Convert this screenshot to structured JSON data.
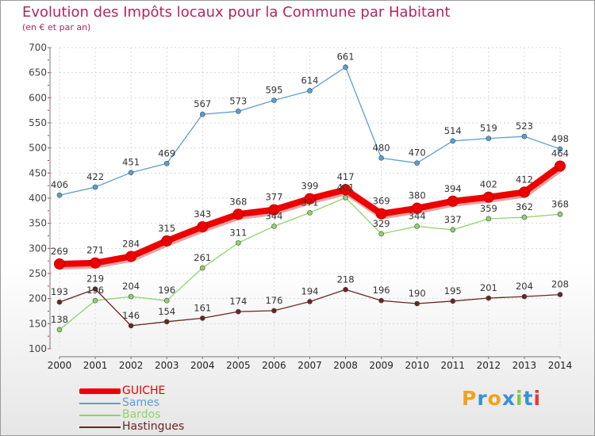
{
  "header": {
    "title": "Evolution des Impôts locaux pour la Commune par Habitant",
    "subtitle": "(en € et par an)"
  },
  "chart_data": {
    "type": "line",
    "title": "Evolution des Impôts locaux pour la Commune par Habitant",
    "subtitle": "(en € et par an)",
    "xlabel": "",
    "ylabel": "",
    "ylim": [
      100,
      700
    ],
    "yticks": [
      100,
      150,
      200,
      250,
      300,
      350,
      400,
      450,
      500,
      550,
      600,
      650,
      700
    ],
    "grid": true,
    "legend_position": "bottom-left",
    "x": [
      "2000",
      "2001",
      "2002",
      "2003",
      "2004",
      "2005",
      "2006",
      "2007",
      "2008",
      "2009",
      "2010",
      "2011",
      "2012",
      "2013",
      "2014"
    ],
    "series": [
      {
        "name": "GUICHE",
        "color": "#ee0000",
        "values": [
          269,
          271,
          284,
          315,
          343,
          368,
          377,
          399,
          417,
          369,
          380,
          394,
          402,
          412,
          464
        ]
      },
      {
        "name": "Sames",
        "color": "#5a9fd4",
        "values": [
          406,
          422,
          451,
          469,
          567,
          573,
          595,
          614,
          661,
          480,
          470,
          514,
          519,
          523,
          498
        ]
      },
      {
        "name": "Bardos",
        "color": "#8ed46a",
        "values": [
          138,
          196,
          204,
          196,
          261,
          311,
          344,
          371,
          401,
          329,
          344,
          337,
          359,
          362,
          368
        ]
      },
      {
        "name": "Hastingues",
        "color": "#6b2424",
        "values": [
          193,
          219,
          146,
          154,
          161,
          174,
          176,
          194,
          218,
          196,
          190,
          195,
          201,
          204,
          208
        ]
      }
    ]
  },
  "legend": {
    "items": [
      {
        "label": "GUICHE",
        "color": "#ee0000"
      },
      {
        "label": "Sames",
        "color": "#5a9fd4"
      },
      {
        "label": "Bardos",
        "color": "#8ed46a"
      },
      {
        "label": "Hastingues",
        "color": "#6b2424"
      }
    ]
  },
  "logo": {
    "letters": [
      "P",
      "r",
      "o",
      "x",
      "i",
      "t",
      "i"
    ],
    "colors": [
      "#f2a21a",
      "#3a8fd8",
      "#f2a21a",
      "#3a8fd8",
      "#8bc34a",
      "#3a8fd8",
      "#e53935"
    ]
  }
}
